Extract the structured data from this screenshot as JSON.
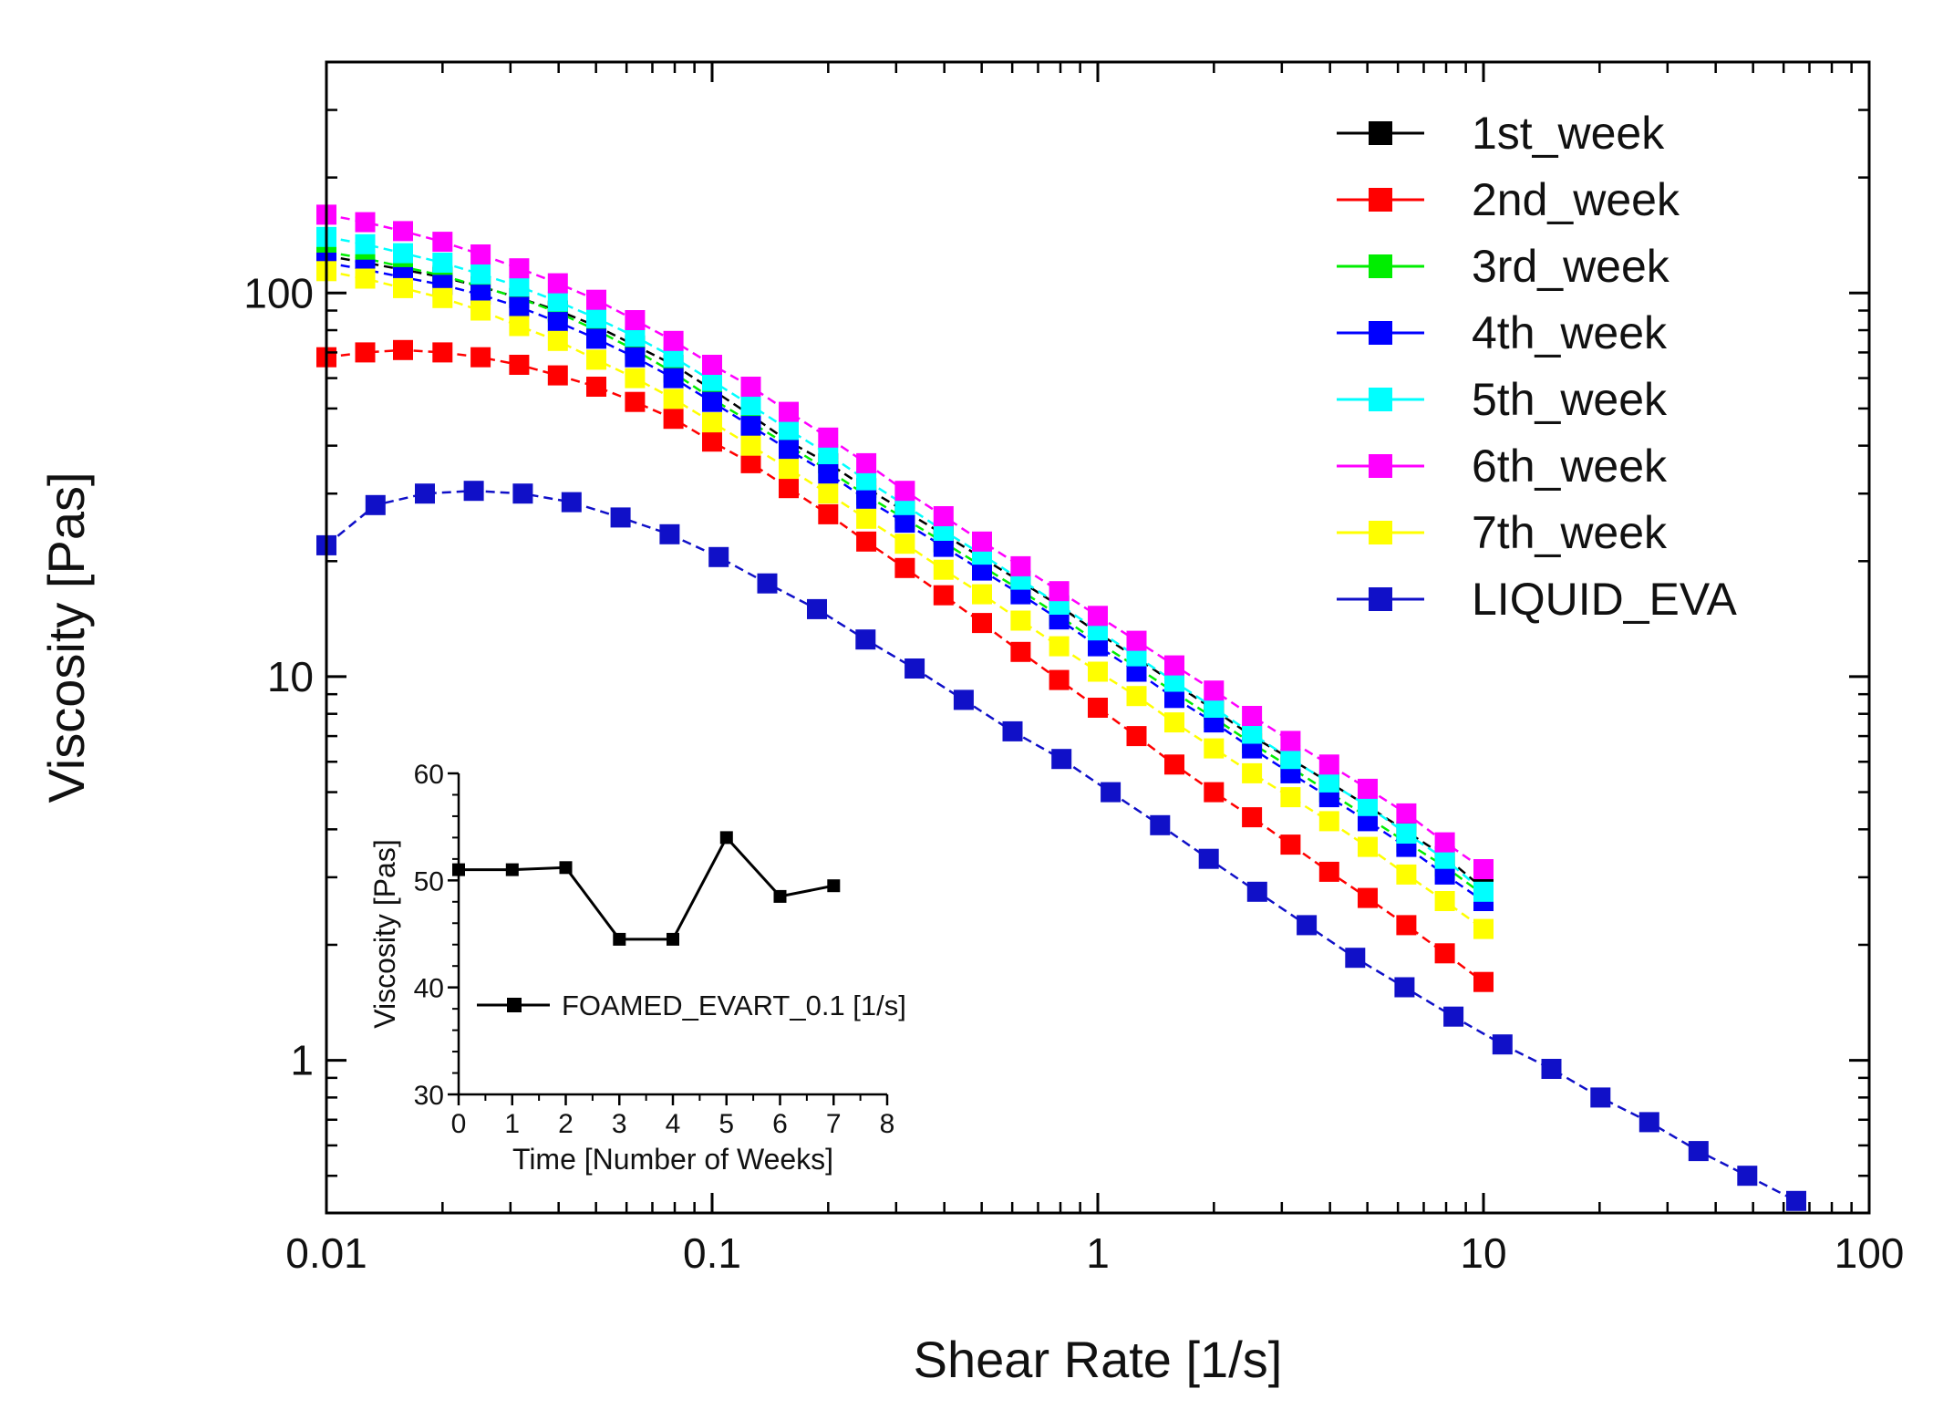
{
  "chart_data": [
    {
      "type": "line",
      "title": "",
      "xlabel": "Shear Rate [1/s]",
      "ylabel": "Viscosity [Pas]",
      "xscale": "log",
      "yscale": "log",
      "xlim": [
        0.01,
        100
      ],
      "ylim": [
        0.4,
        400
      ],
      "xtick_labels": [
        "0.01",
        "0.1",
        "1",
        "10",
        "100"
      ],
      "ytick_labels": [
        "1",
        "10",
        "100"
      ],
      "grid": false,
      "legend_position": "top-right",
      "series": [
        {
          "name": "1st_week",
          "color": "#000000",
          "x": [
            0.01,
            0.0126,
            0.0158,
            0.02,
            0.0251,
            0.0316,
            0.0398,
            0.0501,
            0.0631,
            0.0794,
            0.1,
            0.126,
            0.158,
            0.2,
            0.251,
            0.316,
            0.398,
            0.501,
            0.631,
            0.794,
            1,
            1.26,
            1.58,
            2,
            2.51,
            3.16,
            3.98,
            5.01,
            6.31,
            7.94,
            10
          ],
          "y": [
            125,
            120,
            115,
            110,
            104,
            97,
            90,
            82,
            73,
            65,
            56,
            48,
            41,
            36,
            31,
            27,
            23.5,
            20.4,
            17.7,
            15.3,
            13,
            11.2,
            9.6,
            8.2,
            7,
            6.1,
            5.3,
            4.6,
            3.95,
            3.4,
            2.8
          ]
        },
        {
          "name": "2nd_week",
          "color": "#ff0000",
          "x": [
            0.01,
            0.0126,
            0.0158,
            0.02,
            0.0251,
            0.0316,
            0.0398,
            0.0501,
            0.0631,
            0.0794,
            0.1,
            0.126,
            0.158,
            0.2,
            0.251,
            0.316,
            0.398,
            0.501,
            0.631,
            0.794,
            1,
            1.26,
            1.58,
            2,
            2.51,
            3.16,
            3.98,
            5.01,
            6.31,
            7.94,
            10
          ],
          "y": [
            68,
            70,
            71,
            70,
            68,
            65,
            61,
            57,
            52,
            47,
            41,
            36,
            31,
            26.5,
            22.5,
            19.2,
            16.3,
            13.8,
            11.6,
            9.8,
            8.3,
            7,
            5.9,
            5,
            4.3,
            3.65,
            3.1,
            2.65,
            2.25,
            1.9,
            1.6
          ]
        },
        {
          "name": "3rd_week",
          "color": "#00ee00",
          "x": [
            0.01,
            0.0126,
            0.0158,
            0.02,
            0.0251,
            0.0316,
            0.0398,
            0.0501,
            0.0631,
            0.0794,
            0.1,
            0.126,
            0.158,
            0.2,
            0.251,
            0.316,
            0.398,
            0.501,
            0.631,
            0.794,
            1,
            1.26,
            1.58,
            2,
            2.51,
            3.16,
            3.98,
            5.01,
            6.31,
            7.94,
            10
          ],
          "y": [
            128,
            123,
            117,
            111,
            104,
            97,
            89,
            80,
            71,
            62,
            53,
            46,
            40,
            34.5,
            29.7,
            25.8,
            22.4,
            19.4,
            16.8,
            14.4,
            12.3,
            10.6,
            9.1,
            7.8,
            6.7,
            5.8,
            5,
            4.3,
            3.7,
            3.2,
            2.7
          ]
        },
        {
          "name": "4th_week",
          "color": "#0000ff",
          "x": [
            0.01,
            0.0126,
            0.0158,
            0.02,
            0.0251,
            0.0316,
            0.0398,
            0.0501,
            0.0631,
            0.0794,
            0.1,
            0.126,
            0.158,
            0.2,
            0.251,
            0.316,
            0.398,
            0.501,
            0.631,
            0.794,
            1,
            1.26,
            1.58,
            2,
            2.51,
            3.16,
            3.98,
            5.01,
            6.31,
            7.94,
            10
          ],
          "y": [
            120,
            115,
            110,
            105,
            99,
            92,
            84,
            76,
            68,
            60,
            52,
            45,
            39,
            33.8,
            29,
            25.2,
            21.8,
            18.9,
            16.4,
            14.1,
            12,
            10.3,
            8.8,
            7.6,
            6.5,
            5.6,
            4.85,
            4.2,
            3.6,
            3.05,
            2.6
          ]
        },
        {
          "name": "5th_week",
          "color": "#00ffff",
          "x": [
            0.01,
            0.0126,
            0.0158,
            0.02,
            0.0251,
            0.0316,
            0.0398,
            0.0501,
            0.0631,
            0.0794,
            0.1,
            0.126,
            0.158,
            0.2,
            0.251,
            0.316,
            0.398,
            0.501,
            0.631,
            0.794,
            1,
            1.26,
            1.58,
            2,
            2.51,
            3.16,
            3.98,
            5.01,
            6.31,
            7.94,
            10
          ],
          "y": [
            140,
            134,
            127,
            120,
            112,
            104,
            95,
            86,
            77,
            68,
            59,
            51,
            44,
            38,
            32.5,
            28,
            24,
            20.8,
            17.9,
            15.4,
            13.2,
            11.3,
            9.7,
            8.3,
            7.1,
            6.1,
            5.3,
            4.6,
            3.9,
            3.35,
            2.75
          ]
        },
        {
          "name": "6th_week",
          "color": "#ff00ff",
          "x": [
            0.01,
            0.0126,
            0.0158,
            0.02,
            0.0251,
            0.0316,
            0.0398,
            0.0501,
            0.0631,
            0.0794,
            0.1,
            0.126,
            0.158,
            0.2,
            0.251,
            0.316,
            0.398,
            0.501,
            0.631,
            0.794,
            1,
            1.26,
            1.58,
            2,
            2.51,
            3.16,
            3.98,
            5.01,
            6.31,
            7.94,
            10
          ],
          "y": [
            160,
            153,
            145,
            136,
            126,
            116,
            106,
            96,
            85,
            75,
            65,
            57,
            49,
            42,
            36,
            30.5,
            26.2,
            22.5,
            19.4,
            16.7,
            14.4,
            12.4,
            10.7,
            9.2,
            7.9,
            6.8,
            5.9,
            5.1,
            4.4,
            3.7,
            3.15
          ]
        },
        {
          "name": "7th_week",
          "color": "#ffff00",
          "x": [
            0.01,
            0.0126,
            0.0158,
            0.02,
            0.0251,
            0.0316,
            0.0398,
            0.0501,
            0.0631,
            0.0794,
            0.1,
            0.126,
            0.158,
            0.2,
            0.251,
            0.316,
            0.398,
            0.501,
            0.631,
            0.794,
            1,
            1.26,
            1.58,
            2,
            2.51,
            3.16,
            3.98,
            5.01,
            6.31,
            7.94,
            10
          ],
          "y": [
            114,
            109,
            103,
            97,
            90,
            82,
            75,
            67,
            60,
            53,
            46,
            40,
            34.8,
            30,
            25.8,
            22.2,
            19,
            16.4,
            14,
            12,
            10.3,
            8.9,
            7.6,
            6.5,
            5.6,
            4.85,
            4.2,
            3.6,
            3.05,
            2.6,
            2.2
          ]
        },
        {
          "name": "LIQUID_EVA",
          "color": "#1010c8",
          "x": [
            0.01,
            0.0134,
            0.018,
            0.0241,
            0.0323,
            0.0432,
            0.0579,
            0.0776,
            0.104,
            0.139,
            0.187,
            0.25,
            0.335,
            0.449,
            0.601,
            0.805,
            1.08,
            1.45,
            1.94,
            2.59,
            3.48,
            4.65,
            6.24,
            8.36,
            11.2,
            15,
            20.1,
            26.9,
            36.1,
            48.3,
            64.7
          ],
          "y": [
            22,
            28,
            30,
            30.5,
            30,
            28.5,
            26,
            23.5,
            20.5,
            17.5,
            15,
            12.5,
            10.5,
            8.7,
            7.2,
            6.1,
            5,
            4.1,
            3.35,
            2.75,
            2.25,
            1.85,
            1.55,
            1.3,
            1.1,
            0.95,
            0.8,
            0.69,
            0.58,
            0.5,
            0.43
          ]
        }
      ]
    },
    {
      "type": "line",
      "title": "",
      "xlabel": "Time [Number of Weeks]",
      "ylabel": "Viscosity [Pas]",
      "xlim": [
        0,
        8
      ],
      "ylim": [
        30,
        60
      ],
      "xtick_labels": [
        "0",
        "1",
        "2",
        "3",
        "4",
        "5",
        "6",
        "7",
        "8"
      ],
      "ytick_labels": [
        "30",
        "40",
        "50",
        "60"
      ],
      "legend_position": "lower-left",
      "series": [
        {
          "name": "FOAMED_EVART_0.1 [1/s]",
          "color": "#000000",
          "x": [
            0,
            1,
            2,
            3,
            4,
            5,
            6,
            7
          ],
          "y": [
            51,
            51,
            51.2,
            44.5,
            44.5,
            54,
            48.5,
            49.5
          ]
        }
      ]
    }
  ]
}
